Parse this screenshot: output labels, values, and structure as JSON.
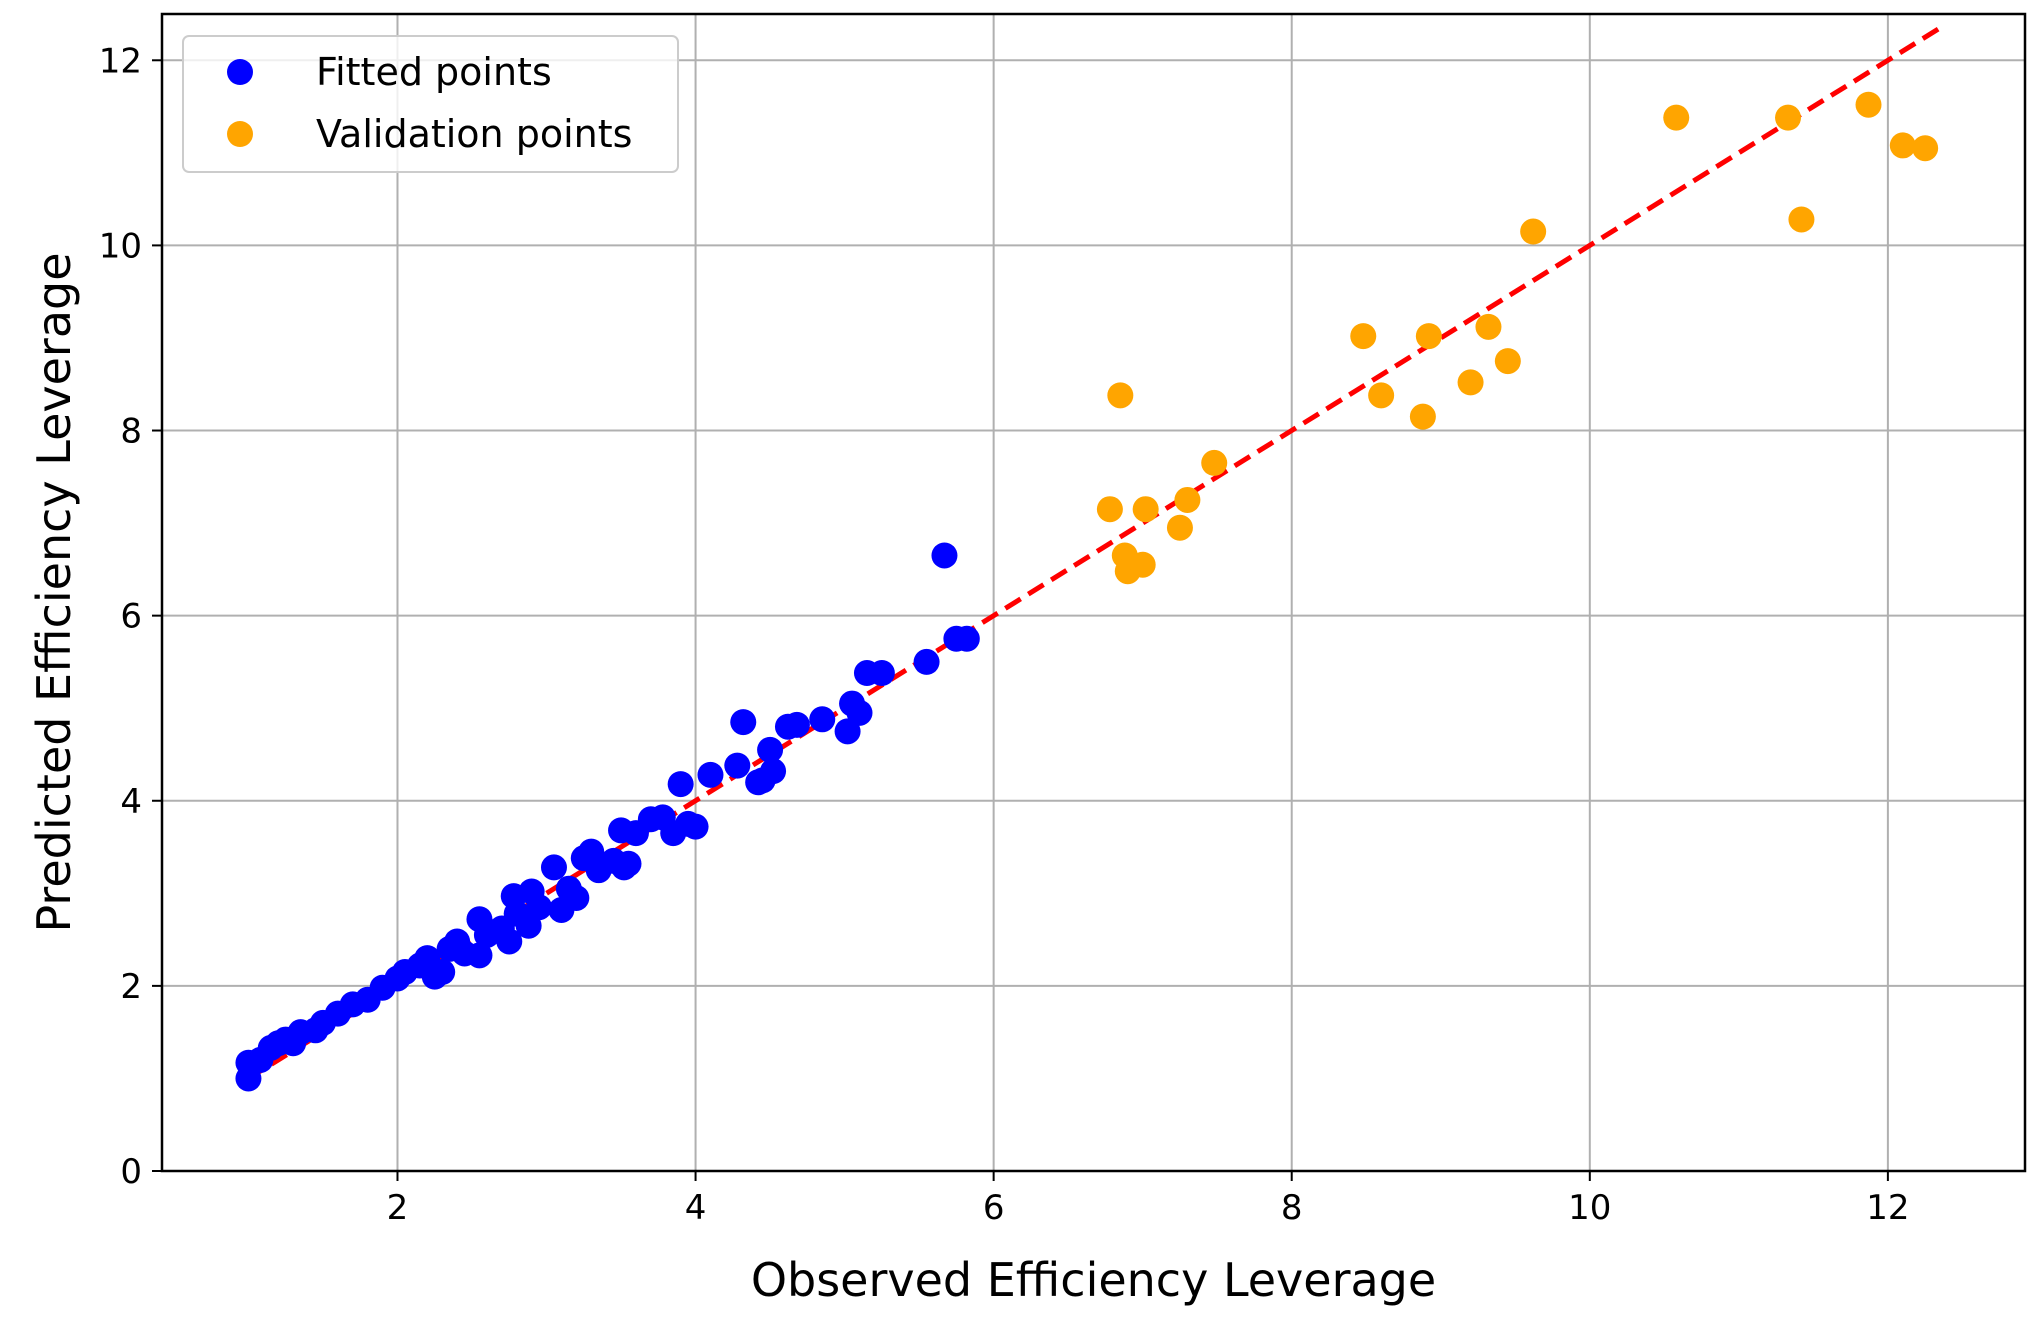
{
  "chart_data": {
    "type": "scatter",
    "title": "",
    "xlabel": "Observed Efficiency Leverage",
    "ylabel": "Predicted Efficiency Leverage",
    "xlim": [
      0.42,
      12.92
    ],
    "ylim": [
      0,
      12.5
    ],
    "xticks": [
      2,
      4,
      6,
      8,
      10,
      12
    ],
    "yticks": [
      0,
      2,
      4,
      6,
      8,
      10,
      12
    ],
    "grid": true,
    "legend_position": "upper-left",
    "series": [
      {
        "name": "Fitted points",
        "color": "#0000ff",
        "points": [
          [
            1.0,
            1.0
          ],
          [
            1.0,
            1.17
          ],
          [
            1.08,
            1.2
          ],
          [
            1.15,
            1.33
          ],
          [
            1.2,
            1.38
          ],
          [
            1.25,
            1.42
          ],
          [
            1.3,
            1.38
          ],
          [
            1.35,
            1.5
          ],
          [
            1.45,
            1.52
          ],
          [
            1.5,
            1.6
          ],
          [
            1.6,
            1.7
          ],
          [
            1.7,
            1.8
          ],
          [
            1.8,
            1.85
          ],
          [
            1.9,
            1.98
          ],
          [
            2.0,
            2.08
          ],
          [
            2.05,
            2.15
          ],
          [
            2.15,
            2.22
          ],
          [
            2.2,
            2.3
          ],
          [
            2.25,
            2.1
          ],
          [
            2.3,
            2.15
          ],
          [
            2.35,
            2.4
          ],
          [
            2.4,
            2.48
          ],
          [
            2.45,
            2.35
          ],
          [
            2.55,
            2.33
          ],
          [
            2.55,
            2.72
          ],
          [
            2.6,
            2.55
          ],
          [
            2.7,
            2.62
          ],
          [
            2.75,
            2.48
          ],
          [
            2.78,
            2.97
          ],
          [
            2.8,
            2.78
          ],
          [
            2.88,
            2.65
          ],
          [
            2.9,
            3.02
          ],
          [
            2.95,
            2.85
          ],
          [
            3.05,
            3.28
          ],
          [
            3.1,
            2.82
          ],
          [
            3.15,
            3.05
          ],
          [
            3.2,
            2.95
          ],
          [
            3.25,
            3.38
          ],
          [
            3.3,
            3.45
          ],
          [
            3.35,
            3.25
          ],
          [
            3.45,
            3.35
          ],
          [
            3.5,
            3.68
          ],
          [
            3.52,
            3.28
          ],
          [
            3.55,
            3.32
          ],
          [
            3.6,
            3.65
          ],
          [
            3.7,
            3.8
          ],
          [
            3.78,
            3.82
          ],
          [
            3.85,
            3.65
          ],
          [
            3.9,
            4.18
          ],
          [
            3.95,
            3.75
          ],
          [
            4.0,
            3.72
          ],
          [
            4.1,
            4.28
          ],
          [
            4.28,
            4.38
          ],
          [
            4.32,
            4.85
          ],
          [
            4.42,
            4.2
          ],
          [
            4.45,
            4.22
          ],
          [
            4.5,
            4.55
          ],
          [
            4.52,
            4.32
          ],
          [
            4.62,
            4.8
          ],
          [
            4.68,
            4.82
          ],
          [
            4.85,
            4.88
          ],
          [
            5.02,
            4.75
          ],
          [
            5.05,
            5.05
          ],
          [
            5.1,
            4.95
          ],
          [
            5.15,
            5.38
          ],
          [
            5.25,
            5.38
          ],
          [
            5.55,
            5.5
          ],
          [
            5.67,
            6.65
          ],
          [
            5.75,
            5.75
          ],
          [
            5.82,
            5.75
          ]
        ]
      },
      {
        "name": "Validation points",
        "color": "#ffa500",
        "points": [
          [
            6.78,
            7.15
          ],
          [
            6.85,
            8.38
          ],
          [
            6.88,
            6.65
          ],
          [
            6.9,
            6.48
          ],
          [
            7.0,
            6.55
          ],
          [
            7.02,
            7.15
          ],
          [
            7.25,
            6.95
          ],
          [
            7.3,
            7.25
          ],
          [
            7.48,
            7.65
          ],
          [
            8.48,
            9.02
          ],
          [
            8.6,
            8.38
          ],
          [
            8.88,
            8.15
          ],
          [
            8.92,
            9.02
          ],
          [
            9.2,
            8.52
          ],
          [
            9.32,
            9.12
          ],
          [
            9.45,
            8.75
          ],
          [
            9.62,
            10.15
          ],
          [
            10.58,
            11.38
          ],
          [
            11.33,
            11.38
          ],
          [
            11.42,
            10.28
          ],
          [
            11.87,
            11.52
          ],
          [
            12.1,
            11.08
          ],
          [
            12.25,
            11.05
          ]
        ]
      }
    ],
    "reference_line": {
      "style": "dashed",
      "color": "#ff0000",
      "x": [
        1.0,
        12.35
      ],
      "y": [
        1.0,
        12.35
      ]
    }
  }
}
